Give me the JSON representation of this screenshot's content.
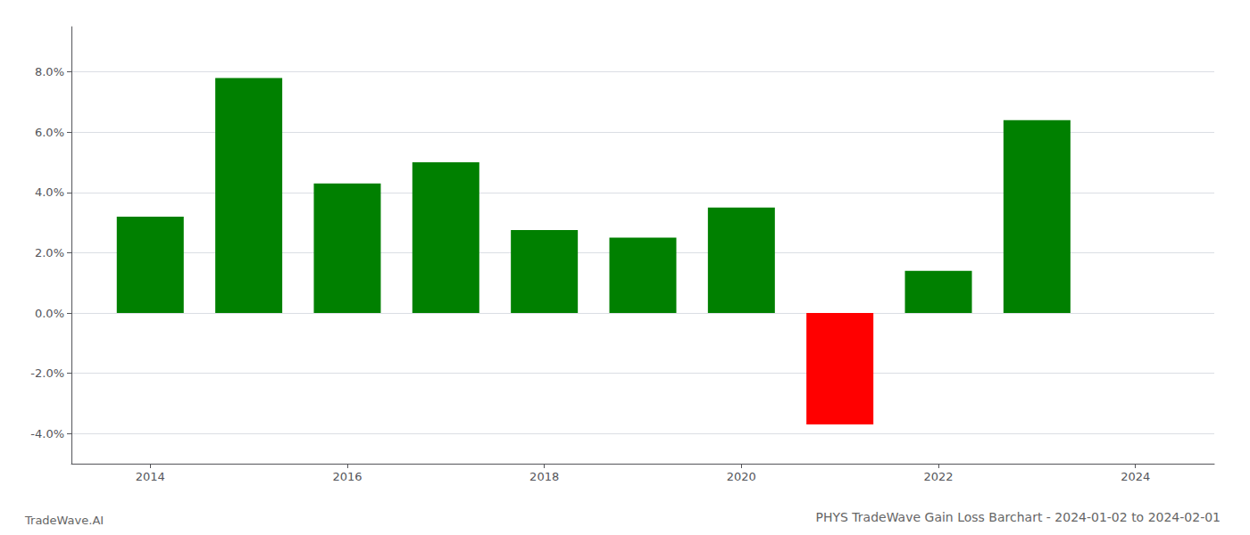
{
  "chart_data": {
    "type": "bar",
    "title": "PHYS TradeWave Gain Loss Barchart - 2024-01-02 to 2024-02-01",
    "annotations": [
      "TradeWave.AI"
    ],
    "x": [
      2014,
      2015,
      2016,
      2017,
      2018,
      2019,
      2020,
      2021,
      2022,
      2023
    ],
    "values": [
      0.032,
      0.078,
      0.043,
      0.05,
      0.0275,
      0.025,
      0.035,
      -0.037,
      0.014,
      0.064
    ],
    "colors": [
      "#008000",
      "#008000",
      "#008000",
      "#008000",
      "#008000",
      "#008000",
      "#008000",
      "#ff0000",
      "#008000",
      "#008000"
    ],
    "xlim": [
      2013.2,
      2024.8
    ],
    "xticks": [
      2014,
      2016,
      2018,
      2020,
      2022,
      2024
    ],
    "ylim": [
      -0.05,
      0.095
    ],
    "yticks": [
      {
        "value": -0.04,
        "label": "-4.0%"
      },
      {
        "value": -0.02,
        "label": "-2.0%"
      },
      {
        "value": 0.0,
        "label": "0.0%"
      },
      {
        "value": 0.02,
        "label": "2.0%"
      },
      {
        "value": 0.04,
        "label": "4.0%"
      },
      {
        "value": 0.06,
        "label": "6.0%"
      },
      {
        "value": 0.08,
        "label": "8.0%"
      }
    ],
    "grid": true
  }
}
